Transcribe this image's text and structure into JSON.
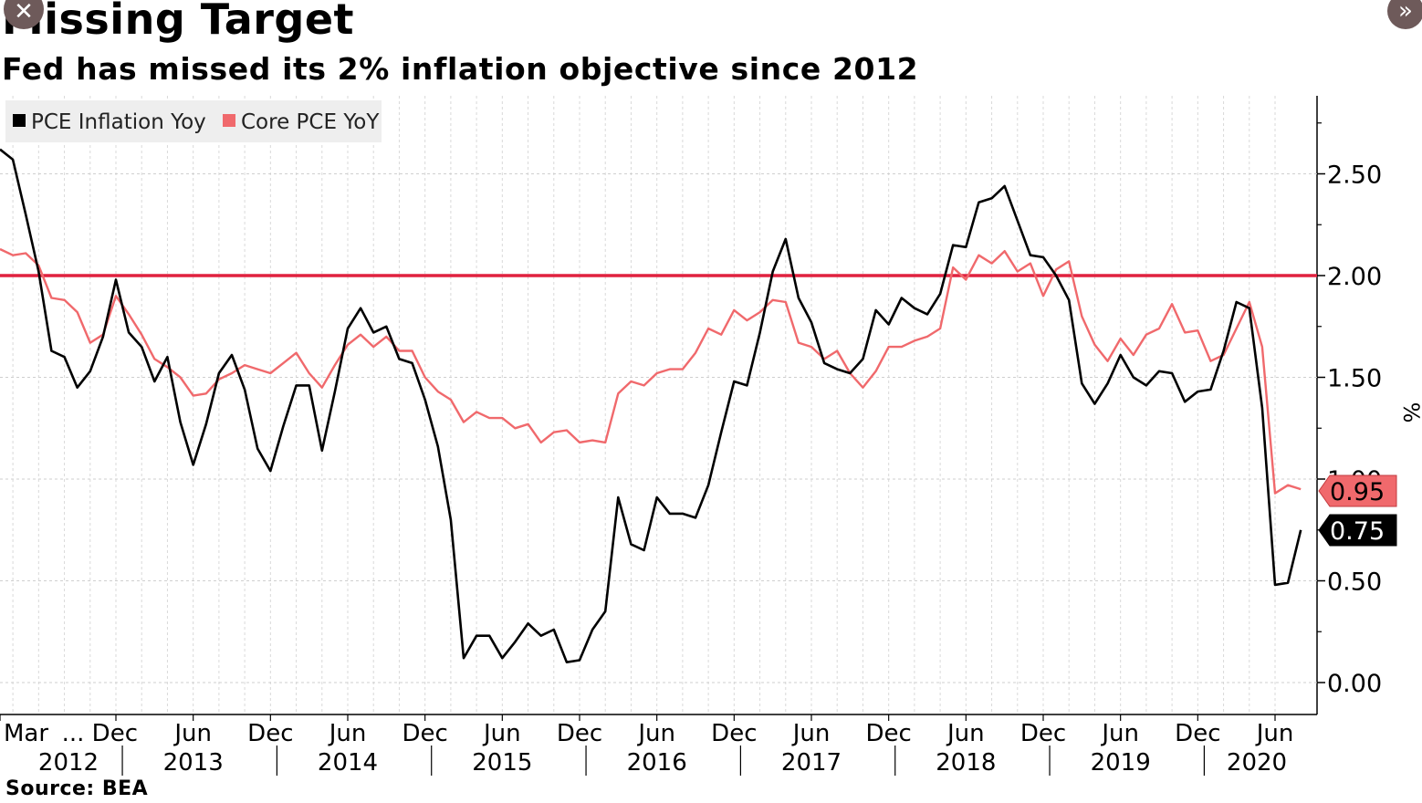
{
  "title": "Missing Target",
  "subtitle": "Fed has missed its 2% inflation objective since 2012",
  "source": "Source: BEA",
  "controls": {
    "close_icon": "close-icon",
    "expand_icon": "double-chevron-right-icon"
  },
  "chart_data": {
    "type": "line",
    "x_start": "2012-03",
    "x_end": "2020-06",
    "ylim": [
      0.0,
      2.9
    ],
    "y_ticks": [
      "0.00",
      "0.50",
      "1.00",
      "1.50",
      "2.00",
      "2.50"
    ],
    "y_axis_label": "%",
    "reference_line": {
      "value": 2.0,
      "color": "#e0213f"
    },
    "x_tick_labels": [
      {
        "month": "Mar",
        "year": "2012",
        "date": "2012-03"
      },
      {
        "month": "... Dec",
        "date": "2012-12"
      },
      {
        "month": "Jun",
        "year": "2013",
        "date": "2013-06"
      },
      {
        "month": "Dec",
        "date": "2013-12"
      },
      {
        "month": "Jun",
        "year": "2014",
        "date": "2014-06"
      },
      {
        "month": "Dec",
        "date": "2014-12"
      },
      {
        "month": "Jun",
        "year": "2015",
        "date": "2015-06"
      },
      {
        "month": "Dec",
        "date": "2015-12"
      },
      {
        "month": "Jun",
        "year": "2016",
        "date": "2016-06"
      },
      {
        "month": "Dec",
        "date": "2016-12"
      },
      {
        "month": "Jun",
        "year": "2017",
        "date": "2017-06"
      },
      {
        "month": "Dec",
        "date": "2017-12"
      },
      {
        "month": "Jun",
        "year": "2018",
        "date": "2018-06"
      },
      {
        "month": "Dec",
        "date": "2018-12"
      },
      {
        "month": "Jun",
        "year": "2019",
        "date": "2019-06"
      },
      {
        "month": "Dec",
        "date": "2019-12"
      },
      {
        "month": "Jun",
        "year": "2020",
        "date": "2020-06"
      }
    ],
    "legend_position": "top-left",
    "series": [
      {
        "name": "PCE Inflation Yoy",
        "color": "#000000",
        "last_value_label": "0.75",
        "values": [
          2.62,
          2.57,
          2.3,
          2.02,
          1.63,
          1.6,
          1.45,
          1.53,
          1.7,
          1.98,
          1.72,
          1.65,
          1.48,
          1.6,
          1.28,
          1.07,
          1.27,
          1.52,
          1.61,
          1.44,
          1.15,
          1.04,
          1.26,
          1.46,
          1.46,
          1.14,
          1.43,
          1.74,
          1.84,
          1.72,
          1.75,
          1.59,
          1.57,
          1.39,
          1.16,
          0.8,
          0.12,
          0.23,
          0.23,
          0.12,
          0.2,
          0.29,
          0.23,
          0.26,
          0.1,
          0.11,
          0.26,
          0.35,
          0.91,
          0.68,
          0.65,
          0.91,
          0.83,
          0.83,
          0.81,
          0.97,
          1.23,
          1.48,
          1.46,
          1.72,
          2.02,
          2.18,
          1.89,
          1.77,
          1.57,
          1.54,
          1.52,
          1.59,
          1.83,
          1.76,
          1.89,
          1.84,
          1.81,
          1.91,
          2.15,
          2.14,
          2.36,
          2.38,
          2.44,
          2.27,
          2.1,
          2.09,
          2.0,
          1.88,
          1.47,
          1.37,
          1.47,
          1.61,
          1.5,
          1.46,
          1.53,
          1.52,
          1.38,
          1.43,
          1.44,
          1.63,
          1.87,
          1.84,
          1.35,
          0.48,
          0.49,
          0.75
        ]
      },
      {
        "name": "Core PCE YoY",
        "color": "#f0696c",
        "last_value_label": "0.95",
        "values": [
          2.13,
          2.1,
          2.11,
          2.05,
          1.89,
          1.88,
          1.82,
          1.67,
          1.71,
          1.9,
          1.81,
          1.71,
          1.59,
          1.55,
          1.5,
          1.41,
          1.42,
          1.49,
          1.52,
          1.56,
          1.54,
          1.52,
          1.57,
          1.62,
          1.52,
          1.45,
          1.56,
          1.66,
          1.71,
          1.65,
          1.7,
          1.63,
          1.63,
          1.5,
          1.43,
          1.39,
          1.28,
          1.33,
          1.3,
          1.3,
          1.25,
          1.27,
          1.18,
          1.23,
          1.24,
          1.18,
          1.19,
          1.18,
          1.42,
          1.48,
          1.46,
          1.52,
          1.54,
          1.54,
          1.62,
          1.74,
          1.71,
          1.83,
          1.78,
          1.82,
          1.88,
          1.87,
          1.67,
          1.65,
          1.59,
          1.63,
          1.52,
          1.45,
          1.53,
          1.65,
          1.65,
          1.68,
          1.7,
          1.74,
          2.04,
          1.98,
          2.1,
          2.06,
          2.12,
          2.02,
          2.06,
          1.9,
          2.03,
          2.07,
          1.8,
          1.66,
          1.58,
          1.69,
          1.61,
          1.71,
          1.74,
          1.86,
          1.72,
          1.73,
          1.58,
          1.61,
          1.74,
          1.87,
          1.65,
          0.93,
          0.97,
          0.95
        ]
      }
    ]
  }
}
